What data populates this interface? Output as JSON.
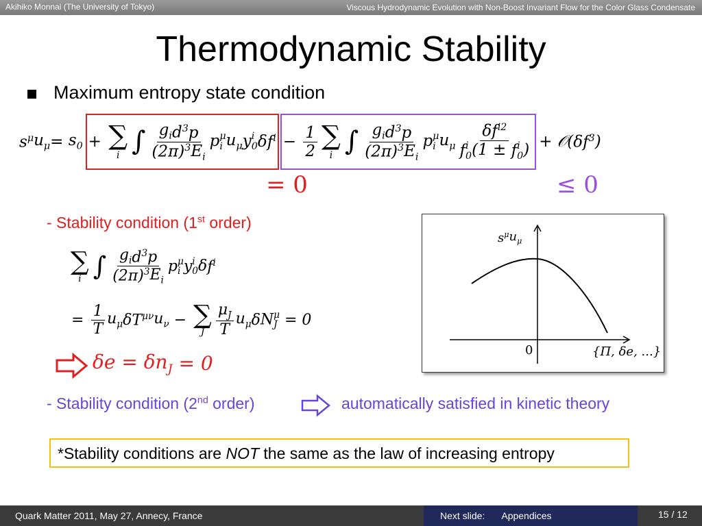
{
  "header": {
    "author": "Akihiko Monnai (The University of Tokyo)",
    "talk": "Viscous Hydrodynamic Evolution with Non-Boost Invariant Flow for the Color Glass Condensate"
  },
  "title": "Thermodynamic Stability",
  "bullet": "Maximum entropy state condition",
  "main_equation": {
    "lhs": [
      {
        "b": "s",
        "sup": "μ"
      },
      {
        "b": "u",
        "sub": "μ"
      },
      "= ",
      {
        "b": "s",
        "sub": "0"
      }
    ],
    "first_order": [
      "+ ",
      {
        "op": "∑",
        "under": "i"
      },
      {
        "op": "∫"
      },
      {
        "frac": [
          [
            {
              "b": "g",
              "sub": "i"
            },
            {
              "b": "d",
              "sup": "3"
            },
            "p"
          ],
          [
            {
              "b": "(2π)",
              "sup": "3"
            },
            {
              "b": "E",
              "sub": "i"
            }
          ]
        ]
      },
      {
        "b": "p",
        "sup": "μ",
        "sub": "i"
      },
      {
        "b": "u",
        "sub": "μ"
      },
      {
        "b": "y",
        "sup": "i",
        "sub": "0"
      },
      "δ",
      {
        "b": "f",
        "sup": "i"
      }
    ],
    "second_order": [
      "− ",
      {
        "frac": [
          [
            "1"
          ],
          [
            "2"
          ]
        ]
      },
      {
        "op": "∑",
        "under": "i"
      },
      {
        "op": "∫"
      },
      {
        "frac": [
          [
            {
              "b": "g",
              "sub": "i"
            },
            {
              "b": "d",
              "sup": "3"
            },
            "p"
          ],
          [
            {
              "b": "(2π)",
              "sup": "3"
            },
            {
              "b": "E",
              "sub": "i"
            }
          ]
        ]
      },
      {
        "b": "p",
        "sup": "μ",
        "sub": "i"
      },
      {
        "b": "u",
        "sub": "μ"
      },
      {
        "frac": [
          [
            {
              "b": "δf",
              "sup": "i2"
            }
          ],
          [
            {
              "b": "f",
              "sup": "i",
              "sub": "0"
            },
            "(1 ± ",
            {
              "b": "f",
              "sup": "i",
              "sub": "0"
            },
            ")"
          ]
        ]
      }
    ],
    "rest": [
      "+ 𝒪(",
      {
        "b": "δf",
        "sup": "3"
      },
      ")"
    ],
    "first_result": "= 0",
    "second_result": "≤ 0"
  },
  "stability_1": {
    "label": {
      "text": "- Stability condition (1",
      "sup": "st",
      "after": " order)"
    },
    "line1": [
      {
        "op": "∑",
        "under": "i"
      },
      {
        "op": "∫"
      },
      {
        "frac": [
          [
            {
              "b": "g",
              "sub": "i"
            },
            {
              "b": "d",
              "sup": "3"
            },
            "p"
          ],
          [
            {
              "b": "(2π)",
              "sup": "3"
            },
            {
              "b": "E",
              "sub": "i"
            }
          ]
        ]
      },
      {
        "b": "p",
        "sup": "μ",
        "sub": "i"
      },
      {
        "b": "y",
        "sup": "i",
        "sub": "0"
      },
      "δ",
      {
        "b": "f",
        "sup": "i"
      }
    ],
    "line2": [
      "= ",
      {
        "frac": [
          [
            "1"
          ],
          [
            "T"
          ]
        ]
      },
      {
        "b": "u",
        "sub": "μ"
      },
      "δ",
      {
        "b": "T",
        "sup": "μν"
      },
      {
        "b": "u",
        "sub": "ν"
      },
      " − ",
      {
        "op": "∑",
        "under": "J"
      },
      {
        "frac": [
          [
            {
              "b": "μ",
              "sub": "J"
            }
          ],
          [
            "T"
          ]
        ]
      },
      {
        "b": "u",
        "sub": "μ"
      },
      "δ",
      {
        "b": "N",
        "sup": "μ",
        "sub": "J"
      },
      " = 0"
    ],
    "result": [
      {
        "b": "δe = δn",
        "sub": "J"
      },
      " = 0"
    ]
  },
  "graph": {
    "y_label": [
      {
        "b": "s",
        "sup": "μ"
      },
      {
        "b": "u",
        "sub": "μ"
      }
    ],
    "origin": "0",
    "x_label": "{Π, δe, ...}"
  },
  "stability_2": {
    "label": {
      "text": "- Stability condition (2",
      "sup": "nd",
      "after": " order)"
    },
    "result": "automatically satisfied in kinetic theory"
  },
  "note": {
    "before": "*Stability conditions are ",
    "em": "NOT",
    "after": " the same as the law of increasing entropy"
  },
  "footer": {
    "conference": "Quark Matter 2011, May 27, Annecy, France",
    "next_label": "Next slide:",
    "next_value": "Appendices",
    "page": "15 / 12"
  }
}
